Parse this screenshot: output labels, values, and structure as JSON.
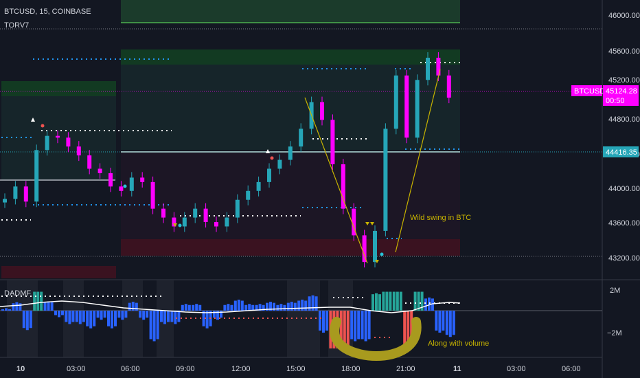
{
  "header": {
    "symbol_line": "BTCUSD, 15, COINBASE",
    "indicator_name": "TORV7",
    "lower_indicator_name": "DADMF"
  },
  "colors": {
    "background": "#131722",
    "bull": "#26a6b8",
    "bear": "#ff00ff",
    "annotation": "#c8b400",
    "volume_up": "#26a69a",
    "volume_down": "#2962ff"
  },
  "annotations": {
    "swing_text": "Wild swing in BTC",
    "volume_text": "Along with volume"
  },
  "chart_data": [
    {
      "type": "candlestick",
      "symbol": "BTCUSD",
      "interval": "15",
      "exchange": "COINBASE",
      "y_ticks": [
        "46000.00",
        "45600.00",
        "45200.00",
        "44800.00",
        "44400.00",
        "44000.00",
        "43600.00",
        "43200.00"
      ],
      "ylim": [
        43100,
        46250
      ],
      "x_ticks": [
        "10",
        "03:00",
        "06:00",
        "09:00",
        "12:00",
        "15:00",
        "18:00",
        "21:00",
        "11",
        "03:00",
        "06:00"
      ],
      "last_price_label": "BTCUSD",
      "last_price": "45124.28",
      "countdown": "00:50",
      "level_label": "44416.35",
      "closes": [
        44010,
        44150,
        43980,
        44560,
        44720,
        44700,
        44600,
        44500,
        44350,
        44300,
        44150,
        44100,
        44250,
        44200,
        43900,
        43800,
        43700,
        43800,
        43900,
        43750,
        43700,
        43800,
        44000,
        44100,
        44200,
        44350,
        44450,
        44600,
        44800,
        45100,
        44900,
        44400,
        43900,
        43600,
        43300,
        43650,
        44800,
        45400,
        44700,
        45350,
        45600,
        45400,
        45150
      ]
    },
    {
      "type": "histogram",
      "name": "DADMF",
      "y_ticks": [
        "2M",
        "−2M"
      ],
      "ylim": [
        -2.1,
        2.3
      ]
    }
  ]
}
